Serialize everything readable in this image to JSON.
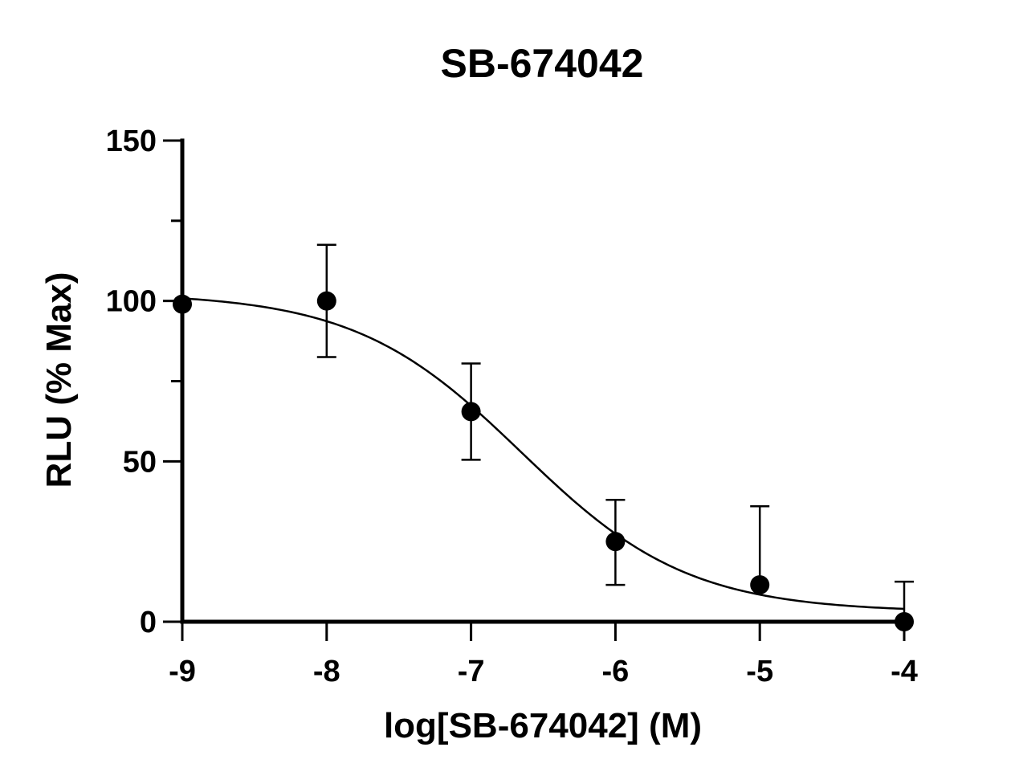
{
  "chart_data": {
    "type": "scatter",
    "title": "SB-674042",
    "xlabel": "log[SB-674042] (M)",
    "ylabel": "RLU (% Max)",
    "xlim": [
      -9,
      -4
    ],
    "ylim": [
      0,
      150
    ],
    "x_ticks": [
      -9,
      -8,
      -7,
      -6,
      -5,
      -4
    ],
    "x_tick_labels": [
      "-9",
      "-8",
      "-7",
      "-6",
      "-5",
      "-4"
    ],
    "y_ticks": [
      0,
      50,
      100,
      150
    ],
    "y_tick_labels": [
      "0",
      "50",
      "100",
      "150"
    ],
    "y_minor_ticks": [
      75,
      125
    ],
    "grid": false,
    "point_color": "#000000",
    "series": [
      {
        "points": [
          {
            "x": -9,
            "y": 99,
            "err_low": 99,
            "err_high": 99
          },
          {
            "x": -8,
            "y": 100,
            "err_low": 82.5,
            "err_high": 117.5
          },
          {
            "x": -7,
            "y": 65.5,
            "err_low": 50.5,
            "err_high": 80.5
          },
          {
            "x": -6,
            "y": 25,
            "err_low": 11.5,
            "err_high": 38
          },
          {
            "x": -5,
            "y": 11.5,
            "err_low": 0,
            "err_high": 36
          },
          {
            "x": -4,
            "y": 0,
            "err_low": 0,
            "err_high": 12.5
          }
        ],
        "fit": {
          "model": "four-parameter logistic",
          "top": 102.5,
          "bottom": 3,
          "logIC50": -6.65,
          "hillslope": -0.75
        }
      }
    ]
  }
}
